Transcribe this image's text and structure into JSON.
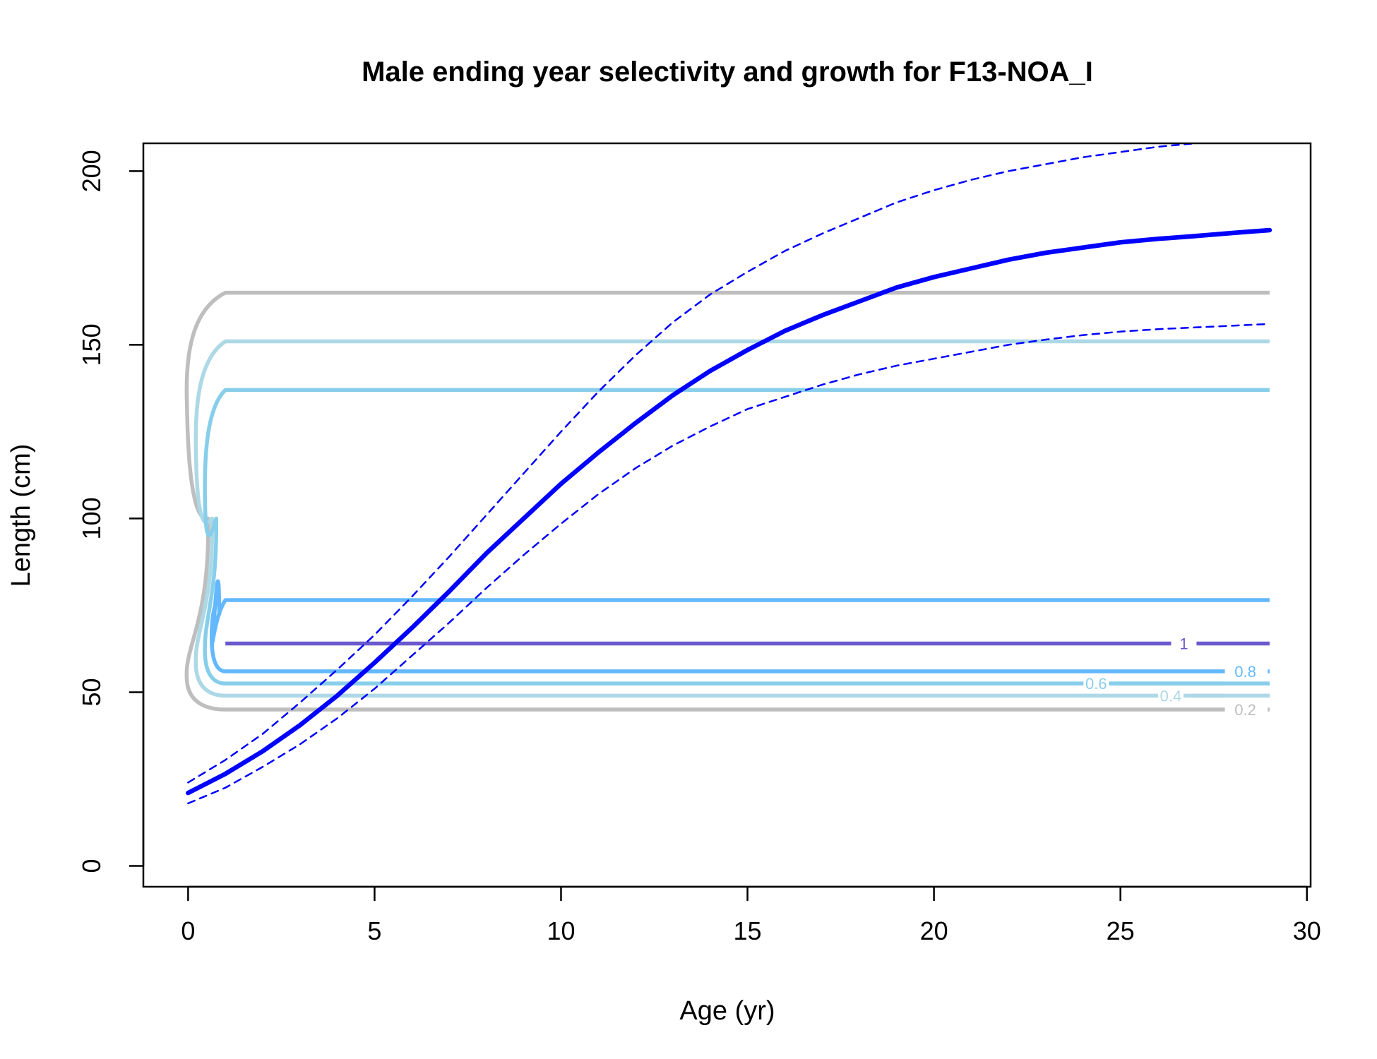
{
  "chart_data": {
    "type": "line",
    "title": "Male ending year selectivity and growth for F13-NOA_I",
    "xlabel": "Age (yr)",
    "ylabel": "Length (cm)",
    "xlim": [
      -1.2,
      30.1
    ],
    "ylim": [
      -6,
      208
    ],
    "xticks": [
      0,
      5,
      10,
      15,
      20,
      25,
      30
    ],
    "yticks": [
      0,
      50,
      100,
      150,
      200
    ],
    "grid": false,
    "series": [
      {
        "role": "mean",
        "color": "#0000ff",
        "style": "solid",
        "x": [
          0,
          1,
          2,
          3,
          4,
          5,
          6,
          7,
          8,
          9,
          10,
          11,
          12,
          13,
          14,
          15,
          16,
          17,
          18,
          19,
          20,
          21,
          22,
          23,
          24,
          25,
          26,
          27,
          28,
          29
        ],
        "y": [
          21,
          26.5,
          33,
          40.5,
          49,
          58.5,
          68.5,
          79,
          90,
          100,
          110,
          119,
          127.5,
          135.5,
          142.5,
          148.5,
          154,
          158.5,
          162.5,
          166.5,
          169.5,
          172,
          174.5,
          176.5,
          178,
          179.5,
          180.5,
          181.3,
          182.2,
          183
        ]
      },
      {
        "role": "upper",
        "color": "#0000ff",
        "style": "dashed",
        "x": [
          0,
          1,
          2,
          3,
          4,
          5,
          6,
          7,
          8,
          9,
          10,
          11,
          12,
          13,
          14,
          15,
          16,
          17,
          18,
          19,
          20,
          21,
          22,
          23,
          24,
          25,
          26,
          27,
          28,
          29
        ],
        "y": [
          24,
          30.5,
          38,
          47,
          56.5,
          66.5,
          77.5,
          89,
          101,
          113,
          125,
          136.5,
          147,
          156.5,
          164.5,
          171,
          177,
          182,
          186.5,
          191,
          194.5,
          197.5,
          200,
          202,
          204,
          205.5,
          207,
          208,
          208.8,
          209.5
        ]
      },
      {
        "role": "lower",
        "color": "#0000ff",
        "style": "dashed",
        "x": [
          0,
          1,
          2,
          3,
          4,
          5,
          6,
          7,
          8,
          9,
          10,
          11,
          12,
          13,
          14,
          15,
          16,
          17,
          18,
          19,
          20,
          21,
          22,
          23,
          24,
          25,
          26,
          27,
          28,
          29
        ],
        "y": [
          18,
          22.5,
          28.5,
          35,
          42.5,
          51,
          60.5,
          70,
          80,
          89.5,
          98.5,
          107,
          114.5,
          121,
          126.5,
          131.5,
          135,
          138.5,
          141.5,
          144,
          146,
          148,
          150,
          151.5,
          152.8,
          153.8,
          154.5,
          155,
          155.5,
          156
        ]
      }
    ],
    "contours": [
      {
        "level": "0.2",
        "color": "#bebebe",
        "label": "0.2",
        "low": 45,
        "high": 165,
        "bulge": 8.5
      },
      {
        "level": "0.4",
        "color": "#add8e6",
        "label": "0.4",
        "low": 49,
        "high": 151,
        "bulge": 6.5
      },
      {
        "level": "0.6",
        "color": "#87ceeb",
        "label": "0.6",
        "low": 52.5,
        "high": 137,
        "bulge": 4.5
      },
      {
        "level": "0.8",
        "color": "#63b8ff",
        "label": "0.8",
        "low": 56,
        "high": 76.5,
        "bulge": 3
      },
      {
        "level": "1",
        "color": "#6a5acd",
        "label": "1",
        "low": 64,
        "high": 64,
        "bulge": 0
      }
    ]
  }
}
